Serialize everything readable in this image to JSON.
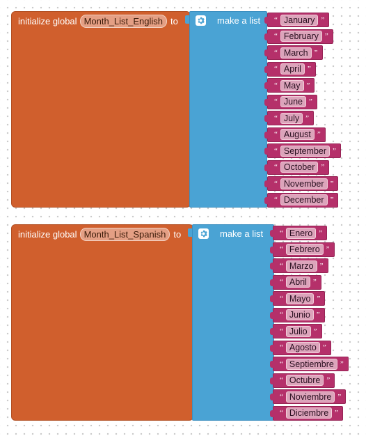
{
  "colors": {
    "init_block": "#d05f2d",
    "list_block": "#4aa3d4",
    "text_block": "#b5306a",
    "workspace_dots": "#c9c9c9"
  },
  "blocks": [
    {
      "keyword": "initialize global",
      "var_name": "Month_List_English",
      "to_label": "to",
      "list_label": "make a list",
      "gear_icon": "gear-icon",
      "items": [
        "January",
        "February",
        "March",
        "April",
        "May",
        "June",
        "July",
        "August",
        "September",
        "October",
        "November",
        "December"
      ]
    },
    {
      "keyword": "initialize global",
      "var_name": "Month_List_Spanish",
      "to_label": "to",
      "list_label": "make a list",
      "gear_icon": "gear-icon",
      "items": [
        "Enero",
        "Febrero",
        "Marzo",
        "Abril",
        "Mayo",
        "Junio",
        "Julio",
        "Agosto",
        "Septiembre",
        "Octubre",
        "Noviembre",
        "Diciembre"
      ]
    }
  ]
}
